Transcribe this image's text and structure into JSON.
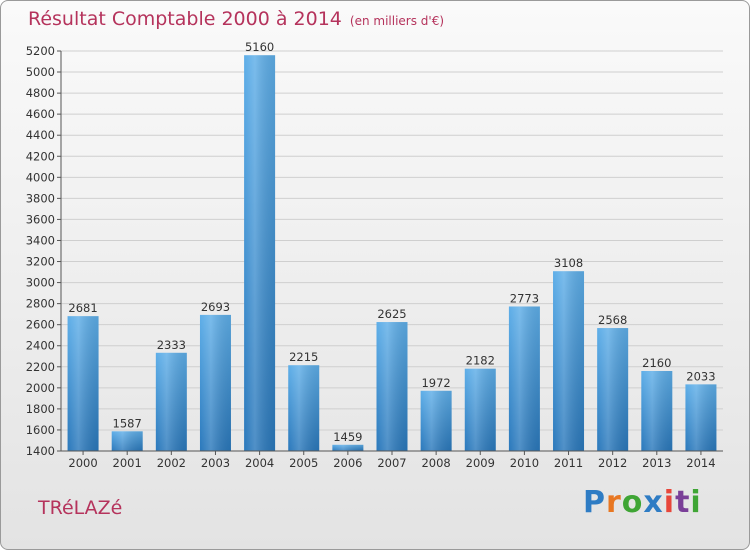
{
  "chart_data": {
    "type": "bar",
    "title": "Résultat Comptable 2000 à 2014",
    "subtitle": "(en milliers d'€)",
    "location": "TRéLAZé",
    "categories": [
      "2000",
      "2001",
      "2002",
      "2003",
      "2004",
      "2005",
      "2006",
      "2007",
      "2008",
      "2009",
      "2010",
      "2011",
      "2012",
      "2013",
      "2014"
    ],
    "values": [
      2681,
      1587,
      2333,
      2693,
      5160,
      2215,
      1459,
      2625,
      1972,
      2182,
      2773,
      3108,
      2568,
      2160,
      2033
    ],
    "ylim": [
      1400,
      5200
    ],
    "ytick_step": 200,
    "xlabel": "",
    "ylabel": "",
    "grid": true,
    "bar_color": "#3b8fd6"
  },
  "brand": {
    "letters": [
      "P",
      "r",
      "o",
      "x",
      "i",
      "t",
      "i"
    ],
    "colors": [
      "#2e7cc4",
      "#e87722",
      "#3fa535",
      "#2e7cc4",
      "#e8463a",
      "#7a3f98",
      "#3fa535"
    ]
  }
}
